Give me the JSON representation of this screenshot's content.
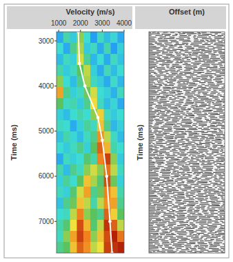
{
  "chart_data": [
    {
      "type": "heatmap",
      "x_label": "Velocity (m/s)",
      "y_label": "Time (ms)",
      "xlim": [
        900,
        4000
      ],
      "xticks": [
        1000,
        2000,
        3000,
        4000
      ],
      "ylim": [
        7700,
        2800
      ],
      "yticks": [
        3000,
        4000,
        5000,
        6000,
        7000
      ],
      "color_range": [
        0,
        1
      ],
      "cells": [
        [
          0.3,
          0.42,
          0.35,
          0.55,
          0.38,
          0.28,
          0.4,
          0.33,
          0.37,
          0.3
        ],
        [
          0.38,
          0.3,
          0.45,
          0.58,
          0.35,
          0.4,
          0.3,
          0.42,
          0.28,
          0.36
        ],
        [
          0.33,
          0.4,
          0.36,
          0.62,
          0.44,
          0.32,
          0.38,
          0.3,
          0.4,
          0.34
        ],
        [
          0.42,
          0.35,
          0.4,
          0.5,
          0.6,
          0.36,
          0.3,
          0.41,
          0.33,
          0.38
        ],
        [
          0.55,
          0.38,
          0.33,
          0.45,
          0.58,
          0.4,
          0.35,
          0.3,
          0.39,
          0.32
        ],
        [
          0.75,
          0.45,
          0.36,
          0.4,
          0.52,
          0.62,
          0.38,
          0.36,
          0.31,
          0.4
        ],
        [
          0.5,
          0.4,
          0.42,
          0.35,
          0.45,
          0.66,
          0.4,
          0.33,
          0.37,
          0.3
        ],
        [
          0.36,
          0.33,
          0.38,
          0.42,
          0.38,
          0.55,
          0.68,
          0.4,
          0.35,
          0.38
        ],
        [
          0.4,
          0.38,
          0.3,
          0.36,
          0.44,
          0.4,
          0.7,
          0.45,
          0.32,
          0.36
        ],
        [
          0.34,
          0.42,
          0.37,
          0.33,
          0.4,
          0.45,
          0.78,
          0.6,
          0.4,
          0.33
        ],
        [
          0.38,
          0.35,
          0.4,
          0.45,
          0.36,
          0.5,
          0.85,
          0.72,
          0.42,
          0.38
        ],
        [
          0.3,
          0.4,
          0.36,
          0.38,
          0.48,
          0.42,
          0.8,
          0.9,
          0.55,
          0.35
        ],
        [
          0.42,
          0.33,
          0.45,
          0.4,
          0.55,
          0.62,
          0.55,
          0.82,
          0.6,
          0.4
        ],
        [
          0.36,
          0.44,
          0.38,
          0.5,
          0.7,
          0.58,
          0.48,
          0.88,
          0.52,
          0.36
        ],
        [
          0.4,
          0.36,
          0.48,
          0.62,
          0.75,
          0.45,
          0.52,
          0.8,
          0.7,
          0.42
        ],
        [
          0.34,
          0.45,
          0.52,
          0.7,
          0.6,
          0.42,
          0.6,
          0.78,
          0.75,
          0.45
        ],
        [
          0.38,
          0.4,
          0.6,
          0.8,
          0.55,
          0.5,
          0.45,
          0.85,
          0.68,
          0.5
        ],
        [
          0.42,
          0.48,
          0.65,
          0.88,
          0.72,
          0.48,
          0.6,
          0.92,
          0.85,
          0.6
        ],
        [
          0.4,
          0.55,
          0.75,
          0.9,
          0.8,
          0.55,
          0.7,
          0.88,
          0.95,
          0.82
        ],
        [
          0.45,
          0.5,
          0.7,
          0.85,
          0.78,
          0.6,
          0.65,
          0.9,
          0.92,
          0.95
        ]
      ],
      "series": [
        {
          "type": "line",
          "color": "#ffffff",
          "marker": "circle",
          "x": [
            1900,
            1950,
            2200,
            2800,
            3000,
            3200,
            3350,
            3450
          ],
          "values": [
            2800,
            3500,
            4000,
            4700,
            5200,
            6000,
            7000,
            7700
          ]
        }
      ]
    },
    {
      "type": "image",
      "x_label": "Offset (m)",
      "y_label": "Time (ms)",
      "tick_labels": false
    }
  ]
}
